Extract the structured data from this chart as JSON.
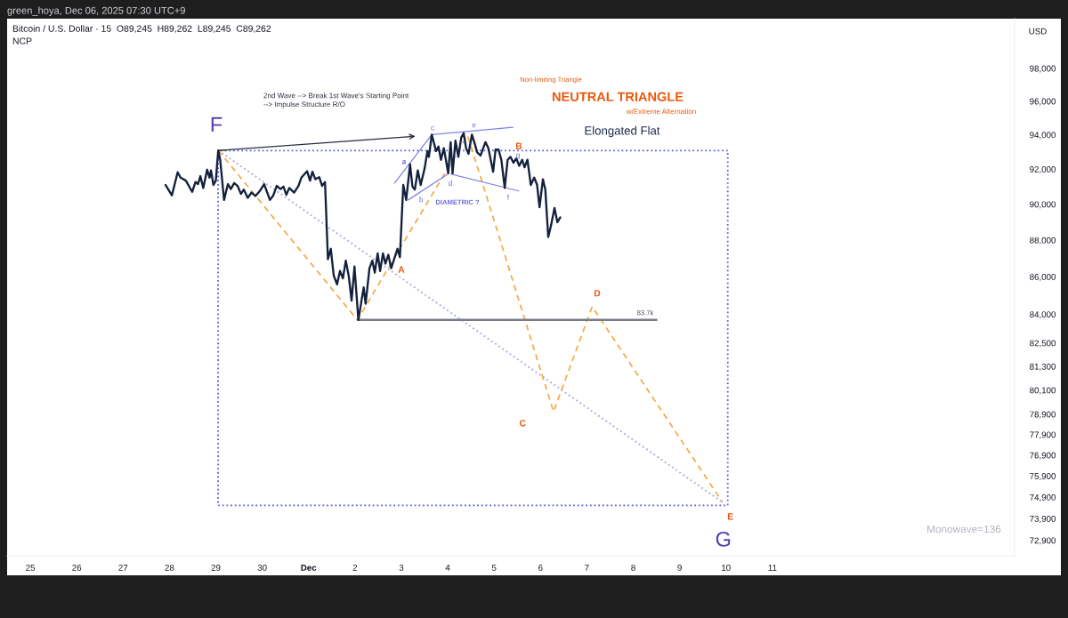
{
  "chart_data": {
    "type": "line",
    "title": "Bitcoin / U.S. Dollar · 15  O89,245  H89,262  L89,245  C89,262",
    "subtitle": "NCP",
    "ylabel": "USD",
    "log": true,
    "xlim": [
      "2025-11-24T12:00",
      "2025-12-16T05:20"
    ],
    "ylim": [
      72200,
      101100
    ],
    "xticks": [
      {
        "value": "2025-11-25",
        "label": "25"
      },
      {
        "value": "2025-11-26",
        "label": "26"
      },
      {
        "value": "2025-11-27",
        "label": "27"
      },
      {
        "value": "2025-11-28",
        "label": "28"
      },
      {
        "value": "2025-11-29",
        "label": "29"
      },
      {
        "value": "2025-11-30",
        "label": "30"
      },
      {
        "value": "2025-12-01",
        "label": "Dec"
      },
      {
        "value": "2025-12-02",
        "label": "2"
      },
      {
        "value": "2025-12-03",
        "label": "3"
      },
      {
        "value": "2025-12-04",
        "label": "4"
      },
      {
        "value": "2025-12-05",
        "label": "5"
      },
      {
        "value": "2025-12-06",
        "label": "6"
      },
      {
        "value": "2025-12-07",
        "label": "7"
      },
      {
        "value": "2025-12-08",
        "label": "8"
      },
      {
        "value": "2025-12-09",
        "label": "9"
      },
      {
        "value": "2025-12-10",
        "label": "10"
      },
      {
        "value": "2025-12-11",
        "label": "11"
      }
    ],
    "yticks": [
      {
        "value": 98000,
        "label": "98,000"
      },
      {
        "value": 96000,
        "label": "96,000"
      },
      {
        "value": 94000,
        "label": "94,000"
      },
      {
        "value": 92000,
        "label": "92,000"
      },
      {
        "value": 90000,
        "label": "90,000"
      },
      {
        "value": 88000,
        "label": "88,000"
      },
      {
        "value": 86000,
        "label": "86,000"
      },
      {
        "value": 84000,
        "label": "84,000"
      },
      {
        "value": 82500,
        "label": "82,500"
      },
      {
        "value": 81300,
        "label": "81,300"
      },
      {
        "value": 80100,
        "label": "80,100"
      },
      {
        "value": 78900,
        "label": "78,900"
      },
      {
        "value": 77900,
        "label": "77,900"
      },
      {
        "value": 76900,
        "label": "76,900"
      },
      {
        "value": 75900,
        "label": "75,900"
      },
      {
        "value": 74900,
        "label": "74,900"
      },
      {
        "value": 73900,
        "label": "73,900"
      },
      {
        "value": 72900,
        "label": "72,900"
      }
    ],
    "annotations": [
      "green_hoya, Dec 06, 2025 07:30 UTC+9",
      "2nd Wave --> Break 1st Wave's Starting Point\n--> Impulse Structure R/O",
      "F",
      "Non-limiting Triangle",
      "NEUTRAL TRIANGLE",
      "w/Extreme Alternation",
      "Elongated Flat",
      "c",
      "e",
      "a",
      "b",
      "d",
      "f",
      "g",
      "B",
      "DIAMETRIC ?",
      "A",
      "D",
      "83.7k",
      "C",
      "E",
      "G",
      "Monowave=136"
    ],
    "series": [
      {
        "color": "#a9b3e3",
        "line_style": "dotted",
        "x": [
          "2025-11-29T01:15",
          "2025-12-09T22:15"
        ],
        "values": [
          93090,
          74660
        ]
      },
      {
        "color": "#f5a742",
        "line_style": "dashed",
        "x": [
          "2025-11-29T01:15",
          "2025-12-02T01:15",
          "2025-12-04T10:15",
          "2025-12-06T06:45",
          "2025-12-07T02:45",
          "2025-12-09T22:15"
        ],
        "values": [
          93090,
          83700,
          93980,
          79020,
          84400,
          74660
        ]
      },
      {
        "color": "#787b86",
        "line_style": "solid",
        "x": [
          "2025-12-02T01:30",
          "2025-12-08T12:00"
        ],
        "values": [
          83700,
          83700
        ]
      },
      {
        "color": "#7f82e6",
        "line_style": "solid",
        "x": [
          "2025-12-02T20:30",
          "2025-12-03T15:45"
        ],
        "values": [
          91200,
          94010
        ]
      },
      {
        "color": "#7f82e6",
        "line_style": "solid",
        "x": [
          "2025-12-03T15:45",
          "2025-12-05T09:45"
        ],
        "values": [
          94010,
          94450
        ]
      },
      {
        "color": "#7f82e6",
        "line_style": "solid",
        "x": [
          "2025-12-03T03:30",
          "2025-12-04T00:15"
        ],
        "values": [
          90240,
          91730
        ]
      },
      {
        "color": "#7f82e6",
        "line_style": "solid",
        "x": [
          "2025-12-04T01:45",
          "2025-12-05T12:45"
        ],
        "values": [
          91710,
          90750
        ]
      },
      {
        "color": "#14213d",
        "line_style": "solid",
        "x": [
          "2025-11-27T22:00",
          "2025-11-28T01:15",
          "2025-11-28T04:15",
          "2025-11-28T05:45",
          "2025-11-28T08:30",
          "2025-11-28T11:45",
          "2025-11-28T13:30",
          "2025-11-28T14:45",
          "2025-11-28T16:00",
          "2025-11-28T17:30",
          "2025-11-28T19:30",
          "2025-11-28T20:45",
          "2025-11-28T21:30",
          "2025-11-28T22:45",
          "2025-11-29T00:00",
          "2025-11-29T01:15",
          "2025-11-29T02:15",
          "2025-11-29T04:15",
          "2025-11-29T06:15",
          "2025-11-29T07:45",
          "2025-11-29T09:30",
          "2025-11-29T11:15",
          "2025-11-29T13:00",
          "2025-11-29T14:30",
          "2025-11-29T16:30",
          "2025-11-29T18:30",
          "2025-11-29T20:30",
          "2025-11-29T22:45",
          "2025-11-30T01:00",
          "2025-11-30T04:00",
          "2025-11-30T05:45",
          "2025-11-30T07:30",
          "2025-11-30T09:30",
          "2025-11-30T11:00",
          "2025-11-30T12:30",
          "2025-11-30T14:00",
          "2025-11-30T16:30",
          "2025-11-30T18:45",
          "2025-11-30T20:15",
          "2025-11-30T23:15",
          "2025-12-01T00:45",
          "2025-12-01T02:00",
          "2025-12-01T03:30",
          "2025-12-01T05:30",
          "2025-12-01T07:00",
          "2025-12-01T08:30",
          "2025-12-01T10:00",
          "2025-12-01T11:30",
          "2025-12-01T13:00",
          "2025-12-01T14:45",
          "2025-12-01T16:15",
          "2025-12-01T17:45",
          "2025-12-01T19:15",
          "2025-12-01T20:45",
          "2025-12-01T22:15",
          "2025-12-01T23:45",
          "2025-12-02T01:45",
          "2025-12-02T04:30",
          "2025-12-02T05:30",
          "2025-12-02T07:30",
          "2025-12-02T09:00",
          "2025-12-02T10:15",
          "2025-12-02T11:45",
          "2025-12-02T13:00",
          "2025-12-02T14:30",
          "2025-12-02T15:45",
          "2025-12-02T17:15",
          "2025-12-02T18:45",
          "2025-12-02T20:30",
          "2025-12-02T22:00",
          "2025-12-02T23:15",
          "2025-12-03T01:00",
          "2025-12-03T02:30",
          "2025-12-03T04:30",
          "2025-12-03T05:45",
          "2025-12-03T07:00",
          "2025-12-03T08:30",
          "2025-12-03T10:00",
          "2025-12-03T12:00",
          "2025-12-03T13:30",
          "2025-12-03T14:15",
          "2025-12-03T15:45",
          "2025-12-03T16:45",
          "2025-12-03T18:00",
          "2025-12-03T19:15",
          "2025-12-03T20:30",
          "2025-12-03T22:00",
          "2025-12-04T00:15",
          "2025-12-04T01:30",
          "2025-12-04T02:30",
          "2025-12-04T04:00",
          "2025-12-04T05:30",
          "2025-12-04T07:00",
          "2025-12-04T08:15",
          "2025-12-04T09:30",
          "2025-12-04T10:45",
          "2025-12-04T12:30",
          "2025-12-04T13:45",
          "2025-12-04T15:15",
          "2025-12-04T17:00",
          "2025-12-04T19:30",
          "2025-12-04T21:00",
          "2025-12-04T23:30",
          "2025-12-05T00:45",
          "2025-12-05T02:15",
          "2025-12-05T03:45",
          "2025-12-05T05:30",
          "2025-12-05T07:00",
          "2025-12-05T08:30",
          "2025-12-05T10:00",
          "2025-12-05T11:30",
          "2025-12-05T13:00",
          "2025-12-05T14:30",
          "2025-12-05T15:45",
          "2025-12-05T17:15",
          "2025-12-05T19:00",
          "2025-12-05T20:45",
          "2025-12-05T22:15",
          "2025-12-05T23:30",
          "2025-12-06T01:15",
          "2025-12-06T02:30",
          "2025-12-06T04:00",
          "2025-12-06T05:30",
          "2025-12-06T07:15",
          "2025-12-06T08:45",
          "2025-12-06T10:15"
        ],
        "values": [
          91090,
          90500,
          91820,
          91510,
          91340,
          90700,
          91260,
          91140,
          91600,
          90920,
          91970,
          91510,
          91930,
          91090,
          91340,
          93090,
          92540,
          90240,
          91140,
          90860,
          91200,
          91040,
          90580,
          90830,
          90360,
          90660,
          90460,
          90750,
          91140,
          90240,
          90500,
          91040,
          90860,
          91000,
          90530,
          90920,
          90660,
          91040,
          91510,
          91880,
          91340,
          91850,
          91420,
          91540,
          91040,
          91260,
          86950,
          87520,
          86060,
          85590,
          86310,
          85910,
          86870,
          86060,
          84720,
          86550,
          83700,
          85430,
          84560,
          86460,
          86870,
          86220,
          87270,
          86310,
          87270,
          86710,
          87190,
          86460,
          87030,
          87520,
          87060,
          91090,
          90240,
          92280,
          91000,
          90830,
          91930,
          91090,
          92020,
          93050,
          92710,
          94010,
          93570,
          93050,
          93310,
          92540,
          93220,
          91760,
          93570,
          91760,
          93660,
          92710,
          93840,
          94100,
          93220,
          92880,
          94010,
          93570,
          92970,
          92790,
          93570,
          93220,
          91850,
          93140,
          93140,
          92540,
          90920,
          92540,
          92710,
          92370,
          92620,
          92190,
          92540,
          92110,
          92540,
          91090,
          91510,
          91090,
          89830,
          91420,
          90830,
          88170,
          88830,
          89790,
          88990,
          89262
        ]
      }
    ]
  }
}
